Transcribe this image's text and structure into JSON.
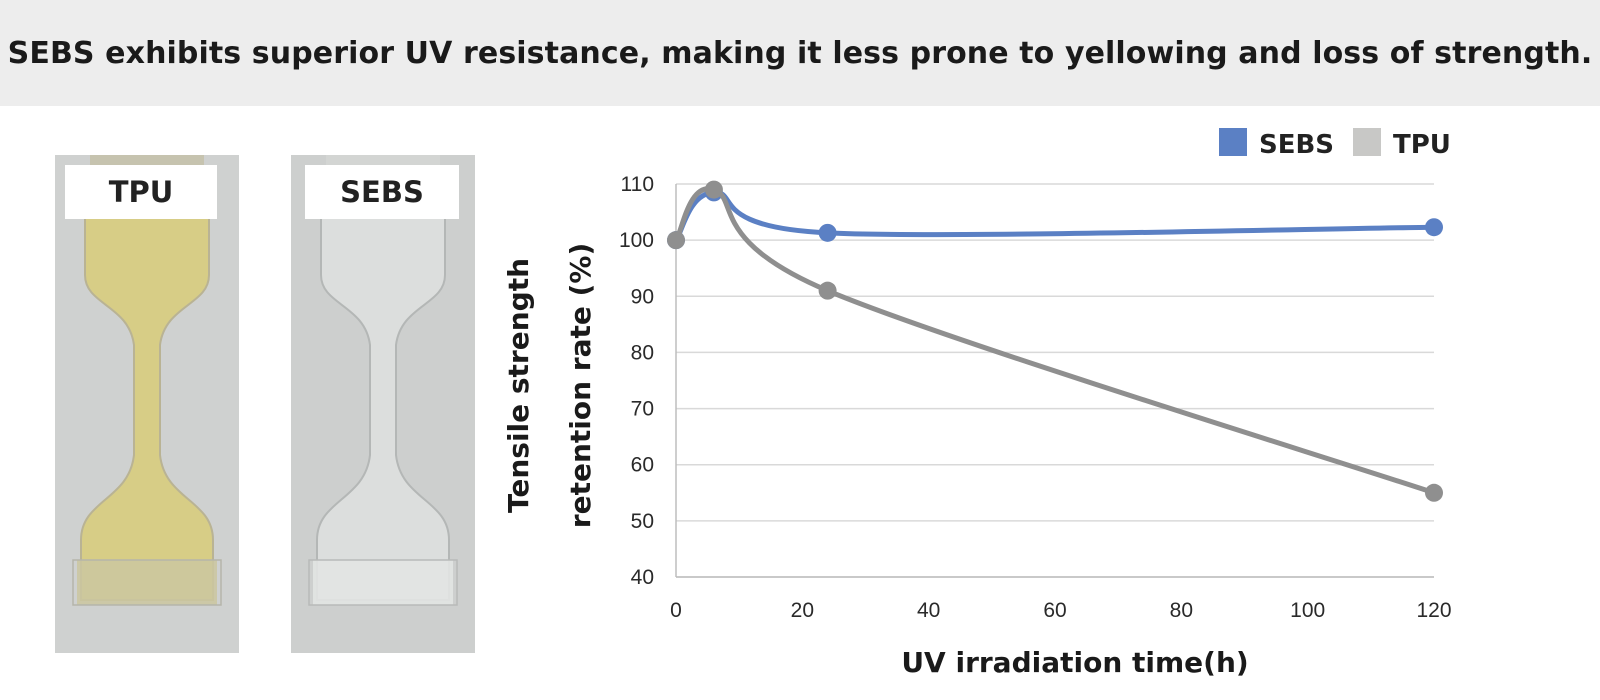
{
  "header": {
    "title": "SEBS exhibits superior UV resistance, making it less prone to yellowing and loss of strength."
  },
  "photos": [
    {
      "label": "TPU",
      "fill_color": "#d8cf8a"
    },
    {
      "label": "SEBS",
      "fill_color": "#e3e5e4"
    }
  ],
  "chart_data": {
    "type": "line",
    "title": "",
    "xlabel": "UV irradiation time(h)",
    "ylabel_lines": [
      "Tensile strength",
      "retention rate (%)"
    ],
    "xlim": [
      0,
      120
    ],
    "ylim": [
      40,
      110
    ],
    "x_ticks": [
      0,
      20,
      40,
      60,
      80,
      100,
      120
    ],
    "y_ticks": [
      40,
      50,
      60,
      70,
      80,
      90,
      100,
      110
    ],
    "grid": "horizontal",
    "legend_position": "top-right",
    "series": [
      {
        "name": "SEBS",
        "color": "#5b80c4",
        "x": [
          0,
          6,
          24,
          120
        ],
        "y": [
          100,
          108.5,
          101.3,
          102.3
        ]
      },
      {
        "name": "TPU",
        "color": "#8f8f8f",
        "legend_color": "#c8c8c6",
        "x": [
          0,
          6,
          24,
          120
        ],
        "y": [
          100,
          109,
          91,
          55
        ]
      }
    ]
  }
}
